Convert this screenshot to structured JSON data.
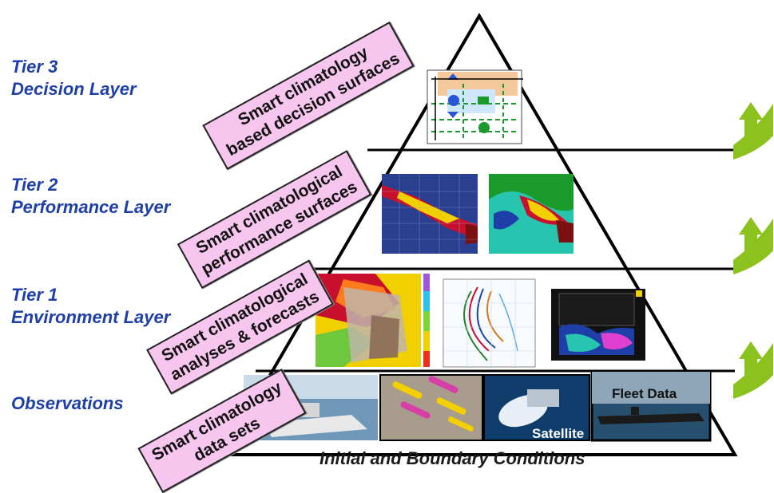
{
  "tiers": [
    {
      "line1": "Tier 3",
      "line2": "Decision Layer"
    },
    {
      "line1": "Tier 2",
      "line2": "Performance Layer"
    },
    {
      "line1": "Tier 1",
      "line2": "Environment Layer"
    },
    {
      "line1": "",
      "line2": "Observations"
    }
  ],
  "tags": [
    {
      "line1": "Smart climatology",
      "line2": "based decision surfaces"
    },
    {
      "line1": "Smart climatological",
      "line2": "performance surfaces"
    },
    {
      "line1": "Smart climatological",
      "line2": "analyses & forecasts"
    },
    {
      "line1": "Smart climatology",
      "line2": "data sets"
    }
  ],
  "base_label": "Initial and Boundary Conditions",
  "photos": {
    "satellite_label": "Satellite",
    "fleet_label": "Fleet Data"
  },
  "colors": {
    "tier_text": "#1f3fa8",
    "tag_fill": "#f7c6ef",
    "arrow_green": "#8cc21d"
  },
  "icons": [
    "curved-arrow-icon",
    "curved-arrow-icon",
    "curved-arrow-icon"
  ]
}
